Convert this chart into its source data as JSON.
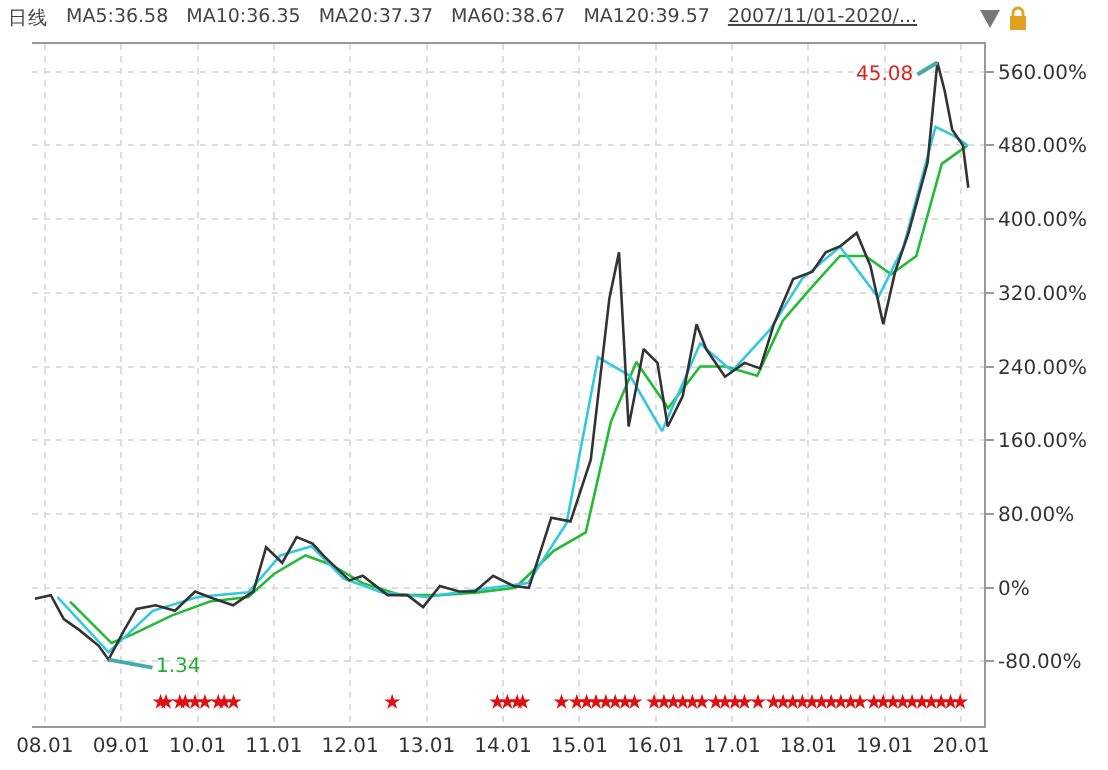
{
  "chart_data": {
    "type": "line",
    "annotations": [
      "日线",
      "MA5:36.58",
      "MA10:36.35",
      "MA20:37.37",
      "MA60:38.67",
      "MA120:39.57",
      "2007/11/01-2020/...",
      {
        "text": "1.34",
        "x": "2008-11-01",
        "y": -78
      },
      {
        "text": "45.08",
        "x": "2019-09-10",
        "y": 570
      }
    ],
    "xlim": [
      "2007-11-01",
      "2020-04-20"
    ],
    "xticks": [
      {
        "value": "2008-01-01",
        "label": "08.01"
      },
      {
        "value": "2009-01-01",
        "label": "09.01"
      },
      {
        "value": "2010-01-01",
        "label": "10.01"
      },
      {
        "value": "2011-01-01",
        "label": "11.01"
      },
      {
        "value": "2012-01-01",
        "label": "12.01"
      },
      {
        "value": "2013-01-01",
        "label": "13.01"
      },
      {
        "value": "2014-01-01",
        "label": "14.01"
      },
      {
        "value": "2015-01-01",
        "label": "15.01"
      },
      {
        "value": "2016-01-01",
        "label": "16.01"
      },
      {
        "value": "2017-01-01",
        "label": "17.01"
      },
      {
        "value": "2018-01-01",
        "label": "18.01"
      },
      {
        "value": "2019-01-01",
        "label": "19.01"
      },
      {
        "value": "2020-01-01",
        "label": "20.01"
      }
    ],
    "ylim": [
      -150,
      590
    ],
    "yticks": [
      {
        "value": -80,
        "label": "-80.00%"
      },
      {
        "value": 0,
        "label": "0%"
      },
      {
        "value": 80,
        "label": "80.00%"
      },
      {
        "value": 160,
        "label": "160.00%"
      },
      {
        "value": 240,
        "label": "240.00%"
      },
      {
        "value": 320,
        "label": "320.00%"
      },
      {
        "value": 400,
        "label": "400.00%"
      },
      {
        "value": 480,
        "label": "480.00%"
      },
      {
        "value": 560,
        "label": "560.00%"
      }
    ],
    "grid": true,
    "line_style": "solid",
    "series": [
      {
        "color": "#22bb33",
        "x": [
          "2008-05-01",
          "2008-11-15",
          "2009-03-01",
          "2009-09-01",
          "2010-03-01",
          "2010-09-01",
          "2011-01-01",
          "2011-06-01",
          "2011-10-01",
          "2012-03-01",
          "2012-09-01",
          "2013-03-01",
          "2013-09-01",
          "2014-03-01",
          "2014-09-01",
          "2015-02-01",
          "2015-06-01",
          "2015-10-01",
          "2016-03-01",
          "2016-08-01",
          "2016-12-01",
          "2017-05-01",
          "2017-09-01",
          "2018-02-01",
          "2018-06-01",
          "2018-10-01",
          "2019-02-01",
          "2019-06-01",
          "2019-10-01",
          "2020-02-01"
        ],
        "values": [
          -15,
          -60,
          -50,
          -30,
          -15,
          -10,
          15,
          35,
          25,
          5,
          -8,
          -8,
          -5,
          0,
          40,
          60,
          180,
          245,
          195,
          240,
          240,
          230,
          290,
          330,
          360,
          360,
          340,
          360,
          460,
          480
        ]
      },
      {
        "color": "#33c8e0",
        "x": [
          "2008-03-01",
          "2008-11-01",
          "2009-06-01",
          "2010-01-01",
          "2010-09-01",
          "2011-02-01",
          "2011-07-01",
          "2011-12-01",
          "2012-06-01",
          "2013-01-01",
          "2013-09-01",
          "2014-05-01",
          "2014-11-01",
          "2015-04-01",
          "2015-09-01",
          "2016-02-01",
          "2016-08-01",
          "2017-01-01",
          "2017-07-01",
          "2017-12-01",
          "2018-06-01",
          "2018-12-01",
          "2019-04-01",
          "2019-09-01",
          "2019-12-01",
          "2020-02-01"
        ],
        "values": [
          -10,
          -70,
          -25,
          -10,
          -5,
          35,
          45,
          10,
          -5,
          -10,
          -2,
          5,
          70,
          250,
          230,
          170,
          265,
          235,
          280,
          335,
          370,
          315,
          370,
          500,
          490,
          480
        ]
      },
      {
        "color": "#333333",
        "x": [
          "2007-11-15",
          "2008-01-30",
          "2008-04-01",
          "2008-06-15",
          "2008-09-15",
          "2008-11-01",
          "2009-01-15",
          "2009-03-15",
          "2009-06-15",
          "2009-09-15",
          "2009-12-20",
          "2010-03-20",
          "2010-06-20",
          "2010-09-25",
          "2010-11-25",
          "2011-02-10",
          "2011-04-20",
          "2011-07-05",
          "2011-08-30",
          "2011-12-28",
          "2012-03-01",
          "2012-06-28",
          "2012-10-01",
          "2012-12-15",
          "2013-03-05",
          "2013-06-05",
          "2013-08-20",
          "2013-11-15",
          "2014-02-20",
          "2014-05-05",
          "2014-08-20",
          "2014-11-20",
          "2015-02-25",
          "2015-05-25",
          "2015-07-10",
          "2015-08-25",
          "2015-11-05",
          "2016-01-10",
          "2016-02-28",
          "2016-05-10",
          "2016-07-15",
          "2016-08-30",
          "2016-11-28",
          "2017-03-01",
          "2017-05-15",
          "2017-07-20",
          "2017-10-20",
          "2018-01-20",
          "2018-03-25",
          "2018-06-05",
          "2018-08-20",
          "2018-10-25",
          "2018-12-25",
          "2019-02-20",
          "2019-04-25",
          "2019-07-25",
          "2019-09-10",
          "2019-10-15",
          "2019-11-20",
          "2020-01-10",
          "2020-02-05"
        ],
        "values": [
          -12,
          -8,
          -34,
          -46,
          -63,
          -78,
          -46,
          -23,
          -19,
          -25,
          -4,
          -12,
          -19,
          -4,
          44,
          27,
          55,
          48,
          34,
          8,
          13,
          -8,
          -8,
          -21,
          2,
          -4,
          -4,
          13,
          2,
          0,
          76,
          72,
          139,
          314,
          364,
          175,
          259,
          244,
          175,
          208,
          286,
          259,
          229,
          244,
          238,
          286,
          335,
          343,
          364,
          371,
          385,
          349,
          286,
          343,
          385,
          461,
          570,
          539,
          497,
          480,
          434
        ]
      },
      {
        "type": "scatter",
        "marker": "star",
        "color": "#dd1111",
        "x": [
          "2009-07-08",
          "2009-08-03",
          "2009-10-08",
          "2009-11-03",
          "2009-12-20",
          "2010-02-05",
          "2010-04-10",
          "2010-05-08",
          "2010-06-22",
          "2012-07-20",
          "2013-12-05",
          "2014-01-22",
          "2014-03-10",
          "2014-04-05",
          "2014-10-08",
          "2014-12-20",
          "2015-02-05",
          "2015-03-22",
          "2015-05-08",
          "2015-06-22",
          "2015-08-08",
          "2015-09-22",
          "2015-12-25",
          "2016-02-10",
          "2016-03-26",
          "2016-05-10",
          "2016-06-25",
          "2016-08-10",
          "2016-10-15",
          "2016-11-28",
          "2017-01-15",
          "2017-03-01",
          "2017-05-05",
          "2017-07-18",
          "2017-09-02",
          "2017-10-18",
          "2017-12-03",
          "2018-01-18",
          "2018-03-05",
          "2018-04-20",
          "2018-06-05",
          "2018-07-22",
          "2018-09-05",
          "2018-11-10",
          "2018-12-25",
          "2019-02-10",
          "2019-03-28",
          "2019-05-12",
          "2019-06-28",
          "2019-08-12",
          "2019-09-28",
          "2019-11-12",
          "2019-12-28"
        ],
        "values": [
          -124,
          -124,
          -124,
          -124,
          -124,
          -124,
          -124,
          -124,
          -124,
          -124,
          -124,
          -124,
          -124,
          -124,
          -124,
          -124,
          -124,
          -124,
          -124,
          -124,
          -124,
          -124,
          -124,
          -124,
          -124,
          -124,
          -124,
          -124,
          -124,
          -124,
          -124,
          -124,
          -124,
          -124,
          -124,
          -124,
          -124,
          -124,
          -124,
          -124,
          -124,
          -124,
          -124,
          -124,
          -124,
          -124,
          -124,
          -124,
          -124,
          -124,
          -124,
          -124,
          -124
        ]
      }
    ]
  }
}
